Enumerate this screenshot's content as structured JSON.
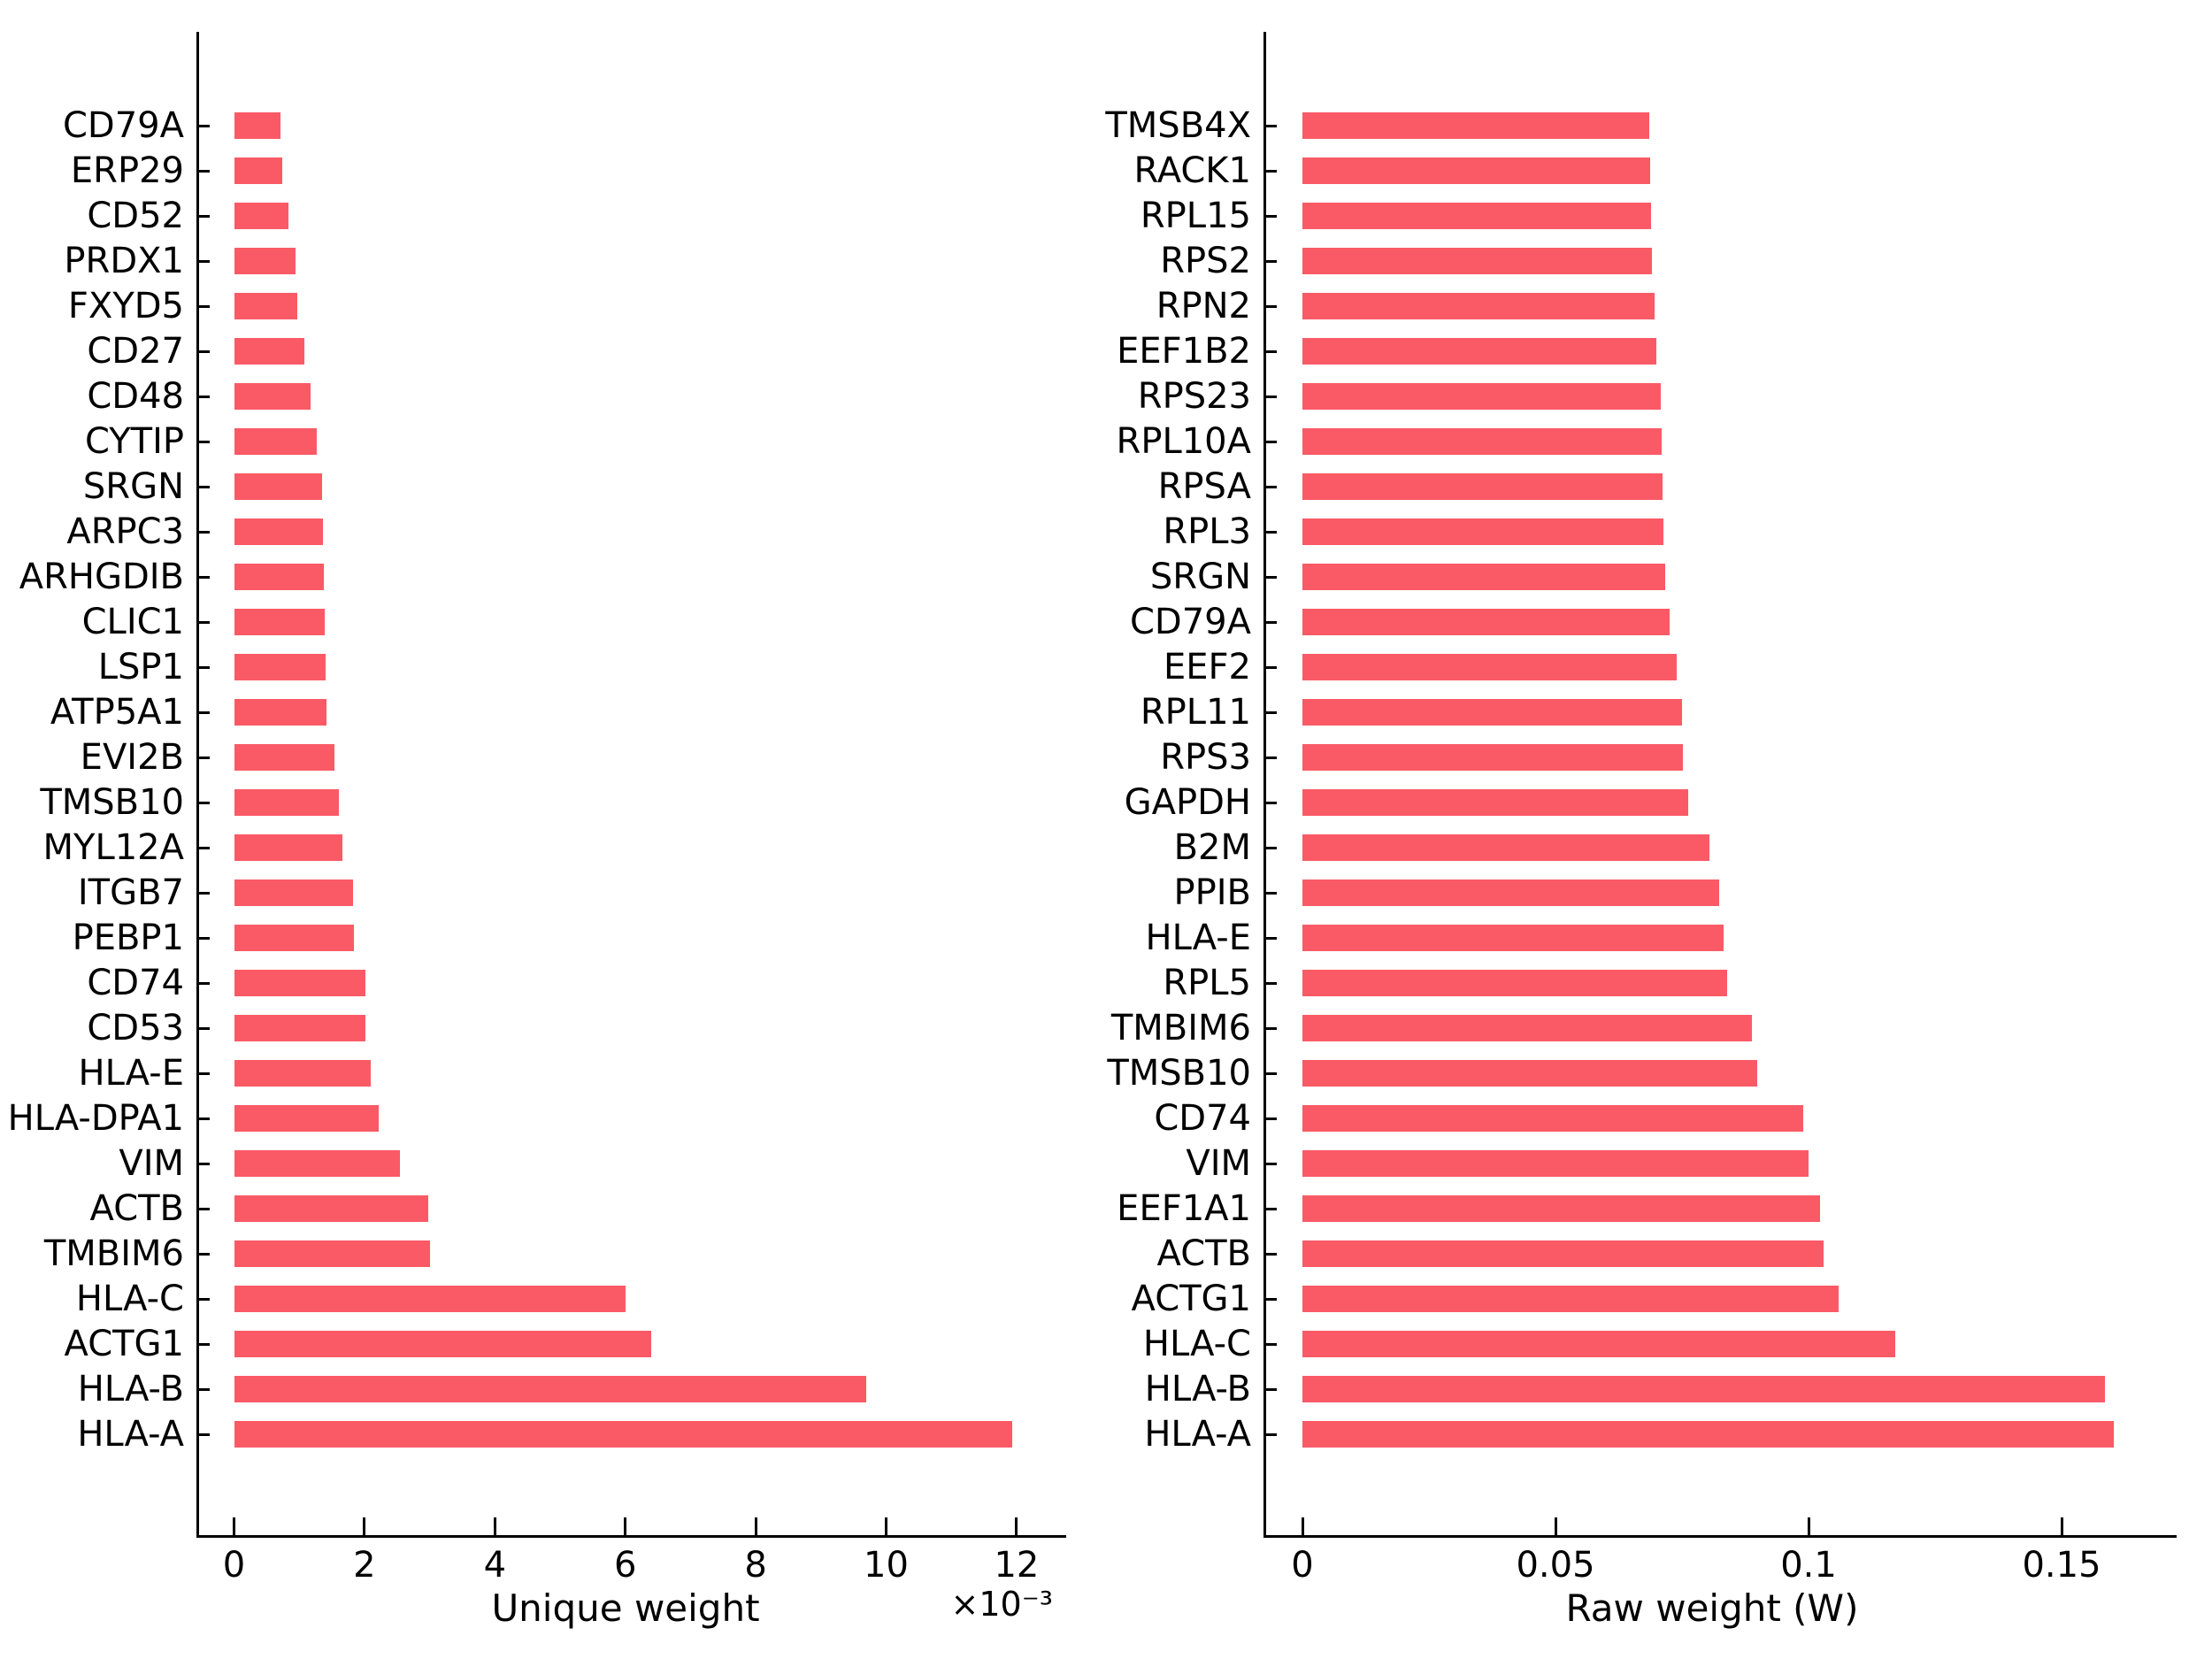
{
  "figure": {
    "background": "#ffffff",
    "bar_color": "#FA5A66",
    "axis_color": "#000000",
    "text_color": "#000000"
  },
  "chart_data": [
    {
      "type": "bar",
      "orientation": "horizontal",
      "panel": "left",
      "title": "",
      "xlabel": "Unique weight",
      "offset_text": "×10⁻³",
      "x_unit_multiplier": 0.001,
      "xlim": [
        0,
        12.8
      ],
      "x_ticks": [
        0,
        2,
        4,
        6,
        8,
        10,
        12
      ],
      "x_tick_labels": [
        "0",
        "2",
        "4",
        "6",
        "8",
        "10",
        "12"
      ],
      "grid": false,
      "legend": null,
      "categories_top_to_bottom": [
        "CD79A",
        "ERP29",
        "CD52",
        "PRDX1",
        "FXYD5",
        "CD27",
        "CD48",
        "CYTIP",
        "SRGN",
        "ARPC3",
        "ARHGDIB",
        "CLIC1",
        "LSP1",
        "ATP5A1",
        "EVI2B",
        "TMSB10",
        "MYL12A",
        "ITGB7",
        "PEBP1",
        "CD74",
        "CD53",
        "HLA-E",
        "HLA-DPA1",
        "VIM",
        "ACTB",
        "TMBIM6",
        "HLA-C",
        "ACTG1",
        "HLA-B",
        "HLA-A"
      ],
      "values": [
        0.71,
        0.74,
        0.83,
        0.94,
        0.97,
        1.08,
        1.18,
        1.27,
        1.35,
        1.37,
        1.38,
        1.39,
        1.4,
        1.42,
        1.54,
        1.61,
        1.66,
        1.82,
        1.84,
        2.01,
        2.02,
        2.1,
        2.22,
        2.54,
        2.98,
        3.0,
        6.01,
        6.4,
        9.69,
        11.94
      ]
    },
    {
      "type": "bar",
      "orientation": "horizontal",
      "panel": "right",
      "title": "",
      "xlabel": "Raw weight (W)",
      "offset_text": "",
      "x_unit_multiplier": 1,
      "xlim": [
        0,
        0.173
      ],
      "x_ticks": [
        0,
        0.05,
        0.1,
        0.15
      ],
      "x_tick_labels": [
        "0",
        "0.05",
        "0.1",
        "0.15"
      ],
      "grid": false,
      "legend": null,
      "categories_top_to_bottom": [
        "TMSB4X",
        "RACK1",
        "RPL15",
        "RPS2",
        "RPN2",
        "EEF1B2",
        "RPS23",
        "RPL10A",
        "RPSA",
        "RPL3",
        "SRGN",
        "CD79A",
        "EEF2",
        "RPL11",
        "RPS3",
        "GAPDH",
        "B2M",
        "PPIB",
        "HLA-E",
        "RPL5",
        "TMBIM6",
        "TMSB10",
        "CD74",
        "VIM",
        "EEF1A1",
        "ACTB",
        "ACTG1",
        "HLA-C",
        "HLA-B",
        "HLA-A"
      ],
      "values": [
        0.0685,
        0.0687,
        0.0688,
        0.069,
        0.0695,
        0.07,
        0.0708,
        0.071,
        0.0712,
        0.0714,
        0.0716,
        0.0726,
        0.0739,
        0.075,
        0.0751,
        0.0762,
        0.0805,
        0.0823,
        0.0833,
        0.084,
        0.0888,
        0.0898,
        0.099,
        0.1,
        0.1023,
        0.1029,
        0.1059,
        0.1171,
        0.1585,
        0.1603
      ]
    }
  ]
}
